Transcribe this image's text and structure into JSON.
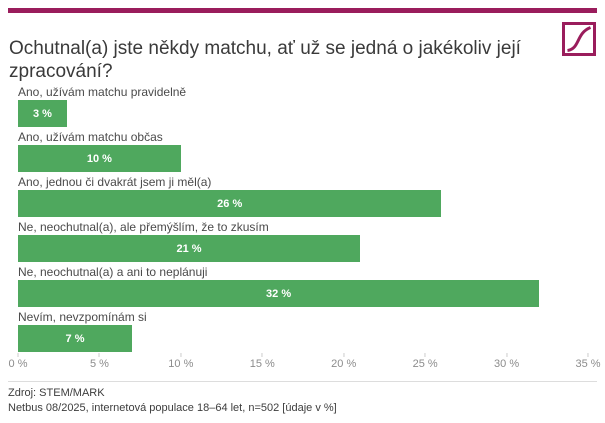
{
  "page": {
    "accent_color": "#9a1d5c",
    "background_color": "#ffffff"
  },
  "header": {
    "title": "Ochutnal(a) jste někdy matchu, ať už se jedná o jakékoliv její zpracování?",
    "logo": "stem-mark-logo"
  },
  "chart_data": {
    "type": "bar",
    "orientation": "horizontal",
    "title": "Ochutnal(a) jste někdy matchu, ať už se jedná o jakékoliv její zpracování?",
    "categories": [
      "Ano, užívám matchu pravidelně",
      "Ano, užívám matchu občas",
      "Ano, jednou či dvakrát jsem ji měl(a)",
      "Ne, neochutnal(a), ale přemýšlím, že to zkusím",
      "Ne, neochutnal(a) a ani to neplánuji",
      "Nevím, nevzpomínám si"
    ],
    "values": [
      3,
      10,
      26,
      21,
      32,
      7
    ],
    "value_labels": [
      "3 %",
      "10 %",
      "26 %",
      "21 %",
      "32 %",
      "7 %"
    ],
    "bar_color": "#4fa85e",
    "value_label_color": "#ffffff",
    "xlim": [
      0,
      35
    ],
    "x_ticks": [
      0,
      5,
      10,
      15,
      20,
      25,
      30,
      35
    ],
    "x_tick_labels": [
      "0 %",
      "5 %",
      "10 %",
      "15 %",
      "20 %",
      "25 %",
      "30 %",
      "35 %"
    ],
    "grid": false,
    "legend": false
  },
  "footer": {
    "source": "Zdroj: STEM/MARK",
    "note": "Netbus 08/2025, internetová populace 18–64 let, n=502 [údaje v %]"
  }
}
